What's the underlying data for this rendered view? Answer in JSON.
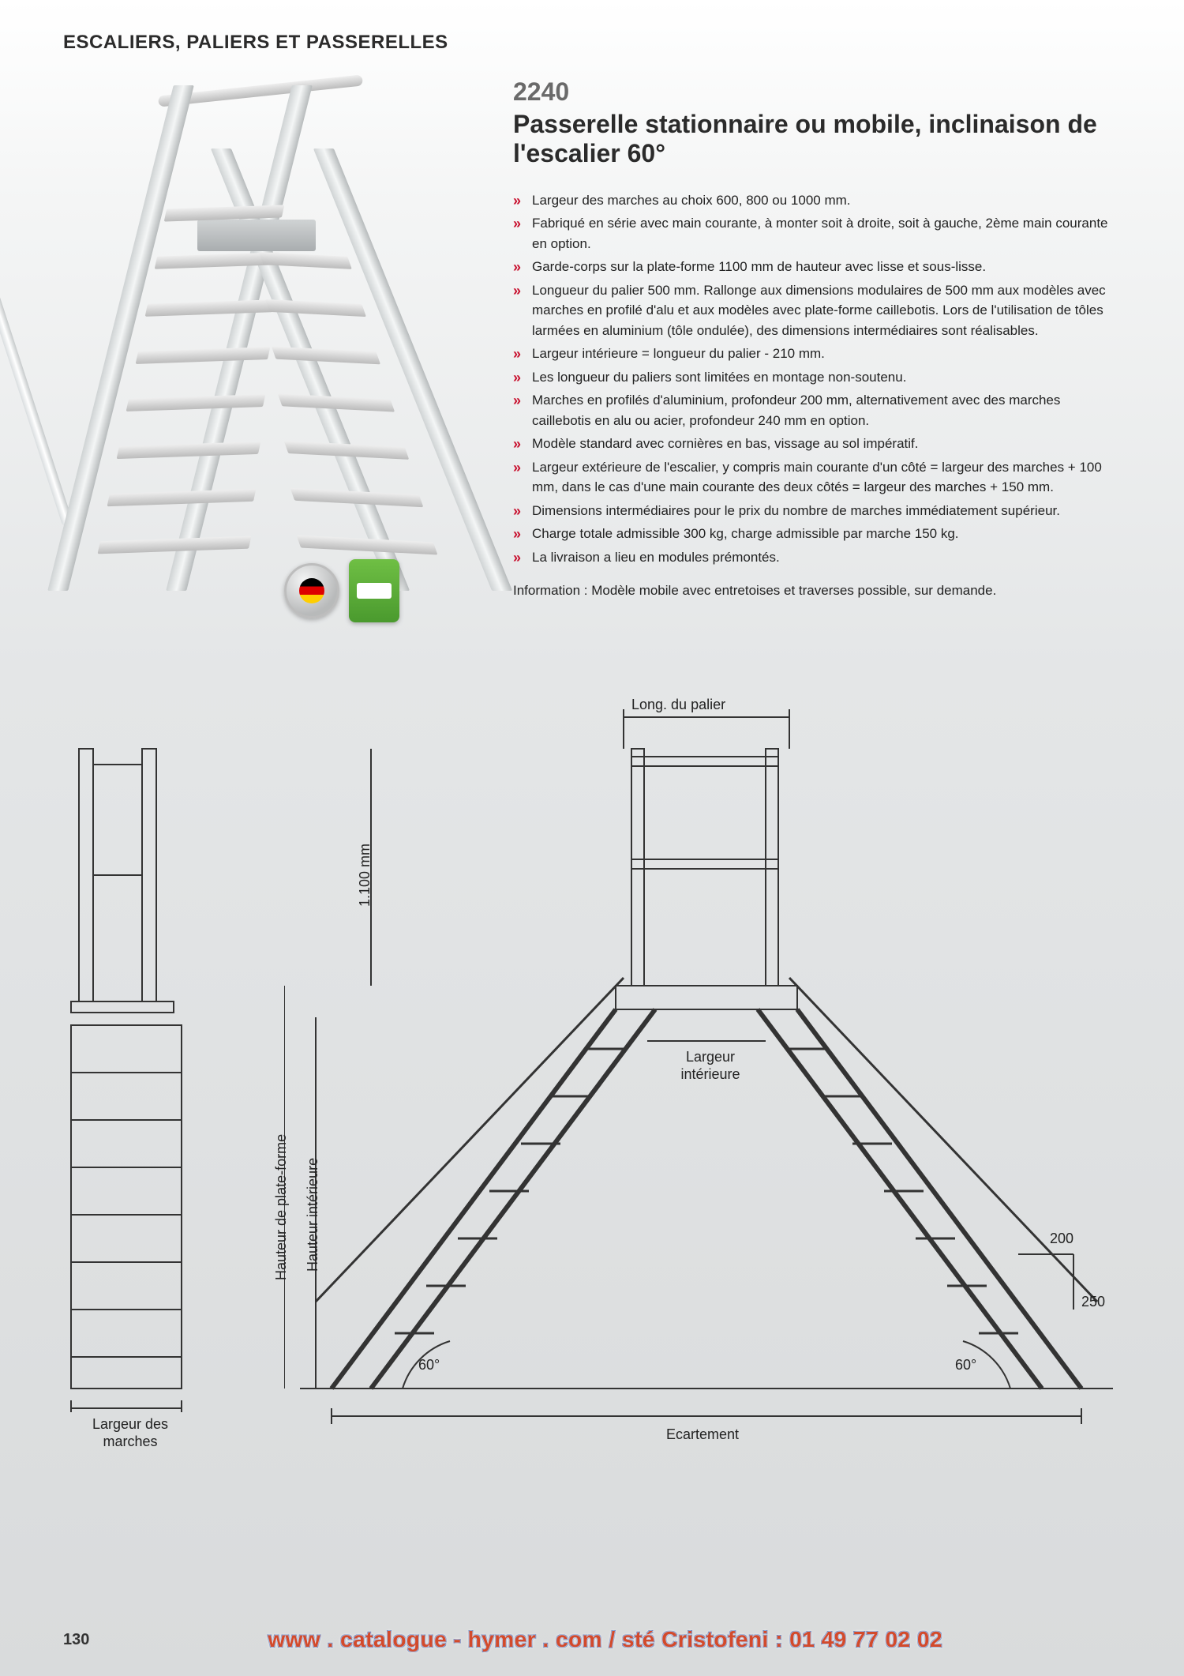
{
  "header": {
    "category": "ESCALIERS, PALIERS ET PASSERELLES"
  },
  "product": {
    "code": "2240",
    "title": "Passerelle stationnaire ou mobile, inclinaison de l'escalier 60°",
    "accent_color": "#c8102e",
    "features": [
      "Largeur des marches au choix 600, 800 ou 1000 mm.",
      "Fabriqué en série avec main courante, à monter soit à droite, soit à gauche, 2ème main courante en option.",
      "Garde-corps sur la plate-forme 1100 mm de hauteur avec lisse et sous-lisse.",
      "Longueur du palier 500 mm. Rallonge aux dimensions modulaires de 500 mm aux modèles avec marches en profilé d'alu et aux modèles avec plate-forme caillebotis. Lors de l'utilisation de tôles larmées en aluminium (tôle ondulée), des dimensions intermédiaires sont réalisables.",
      "Largeur intérieure = longueur du palier - 210 mm.",
      "Les longueur du paliers sont limitées en montage non-soutenu.",
      "Marches en profilés d'aluminium, profondeur 200 mm, alternativement avec des marches caillebotis en alu ou acier, profondeur 240 mm en option.",
      "Modèle standard avec cornières en bas, vissage au sol impératif.",
      "Largeur extérieure de l'escalier, y compris main courante d'un côté = largeur des marches + 100 mm, dans le cas d'une main courante des deux côtés = largeur des marches + 150 mm.",
      "Dimensions intermédiaires pour le prix du nombre de marches immédiatement supérieur.",
      "Charge totale admissible 300 kg, charge admissible par marche 150 kg.",
      "La livraison a lieu en modules prémontés."
    ],
    "info": "Information : Modèle mobile avec entretoises et traverses possible, sur demande."
  },
  "badges": {
    "items": [
      "made-in-germany",
      "dekra"
    ]
  },
  "drawings": {
    "stroke": "#333333",
    "background": "#d9dbdc",
    "labels": {
      "long_palier": "Long. du palier",
      "height_guard": "1.100 mm",
      "largeur_interieure": "Largeur intérieure",
      "hauteur_plateforme": "Hauteur de plate-forme",
      "hauteur_interieure": "Hauteur intérieure",
      "angle_left": "60°",
      "angle_right": "60°",
      "step_depth": "200",
      "riser": "250",
      "ecartement": "Ecartement",
      "largeur_marches": "Largeur des marches"
    }
  },
  "footer": {
    "page": "130",
    "url": "www . catalogue - hymer . com / sté Cristofeni : 01 49 77 02 02"
  }
}
